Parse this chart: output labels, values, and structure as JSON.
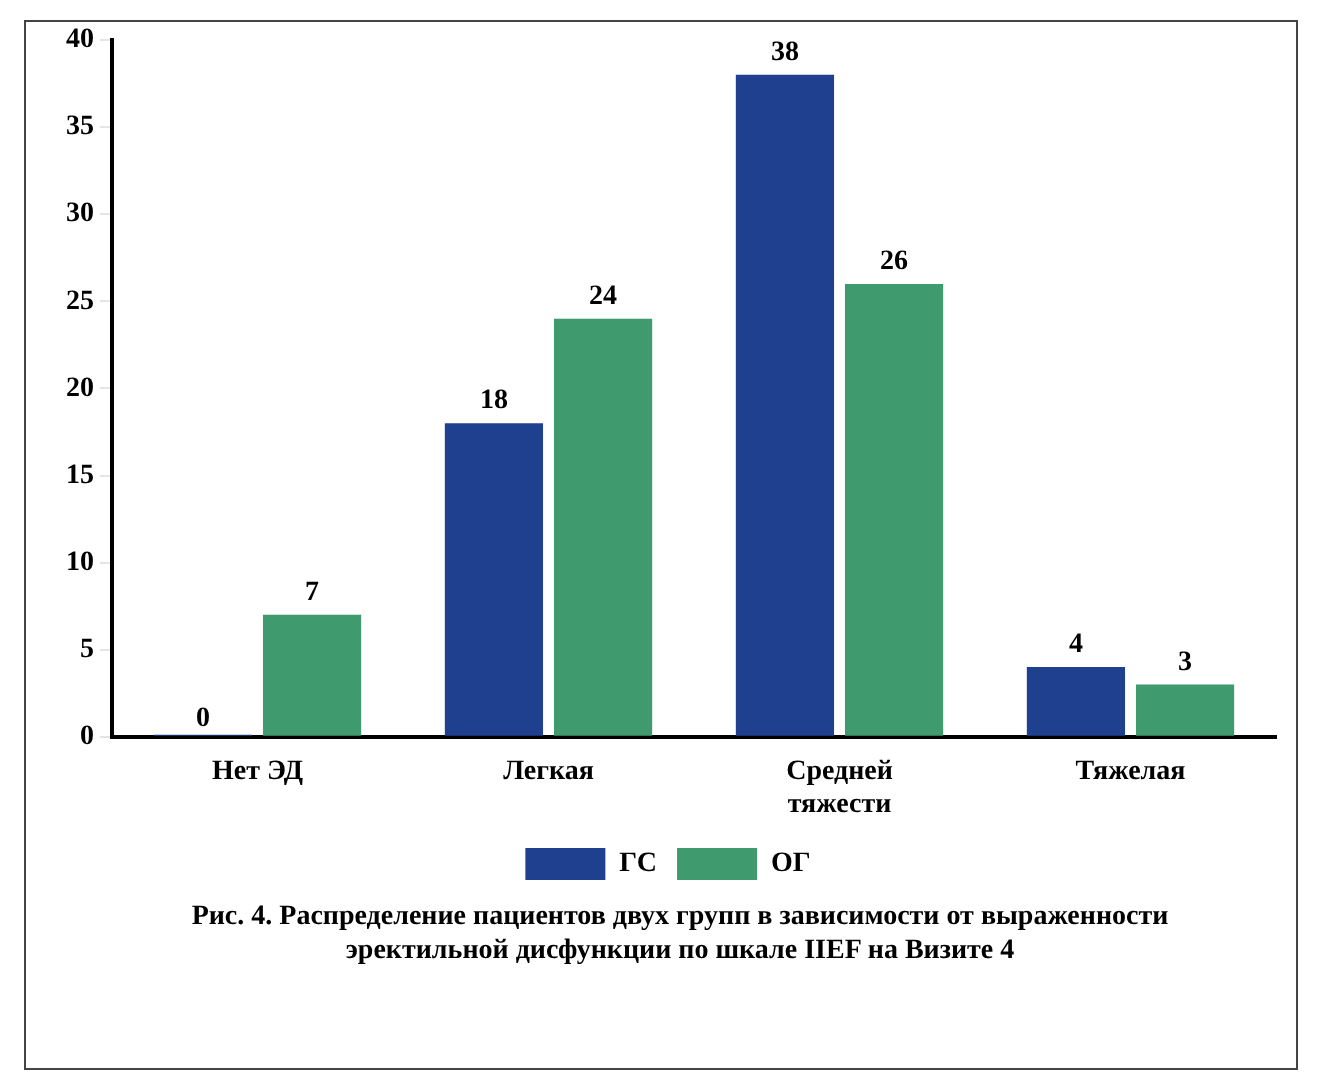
{
  "chart_data": {
    "type": "bar",
    "categories": [
      "Нет ЭД",
      "Легкая",
      "Средней тяжести",
      "Тяжелая"
    ],
    "series": [
      {
        "name": "ГС",
        "color": "#1f3f8f",
        "values": [
          0,
          18,
          38,
          4
        ]
      },
      {
        "name": "ОГ",
        "color": "#3f9a6e",
        "values": [
          7,
          24,
          26,
          3
        ]
      }
    ],
    "ylim": [
      0,
      40
    ],
    "yticks": [
      0,
      5,
      10,
      15,
      20,
      25,
      30,
      35,
      40
    ],
    "grid": false,
    "legend": "bottom",
    "data_labels": true,
    "annotations": [
      "Рис. 4. Распределение пациентов двух групп в зависимости от выраженности эректильной дисфункции по шкале IIEF на Визите 4"
    ]
  }
}
